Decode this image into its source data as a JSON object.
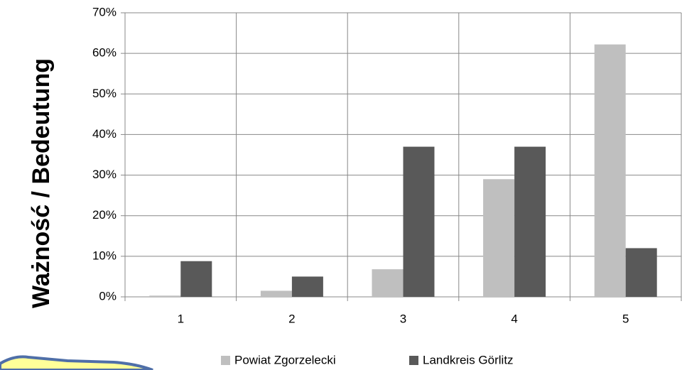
{
  "chart_data": {
    "type": "bar",
    "y_label": "Ważność / Bedeutung",
    "categories": [
      "1",
      "2",
      "3",
      "4",
      "5"
    ],
    "series": [
      {
        "name": "Powiat Zgorzelecki",
        "color": "#bfbfbf",
        "values": [
          0.3,
          1.5,
          6.8,
          29,
          62.2
        ]
      },
      {
        "name": "Landkreis Görlitz",
        "color": "#595959",
        "values": [
          8.8,
          5,
          37,
          37,
          12
        ]
      }
    ],
    "ylim": [
      0,
      70
    ],
    "yticks": [
      {
        "value": 0,
        "label": "0%"
      },
      {
        "value": 10,
        "label": "10%"
      },
      {
        "value": 20,
        "label": "20%"
      },
      {
        "value": 30,
        "label": "30%"
      },
      {
        "value": 40,
        "label": "40%"
      },
      {
        "value": 50,
        "label": "50%"
      },
      {
        "value": 60,
        "label": "60%"
      },
      {
        "value": 70,
        "label": "70%"
      }
    ],
    "grid": true,
    "legend": "bottom"
  }
}
